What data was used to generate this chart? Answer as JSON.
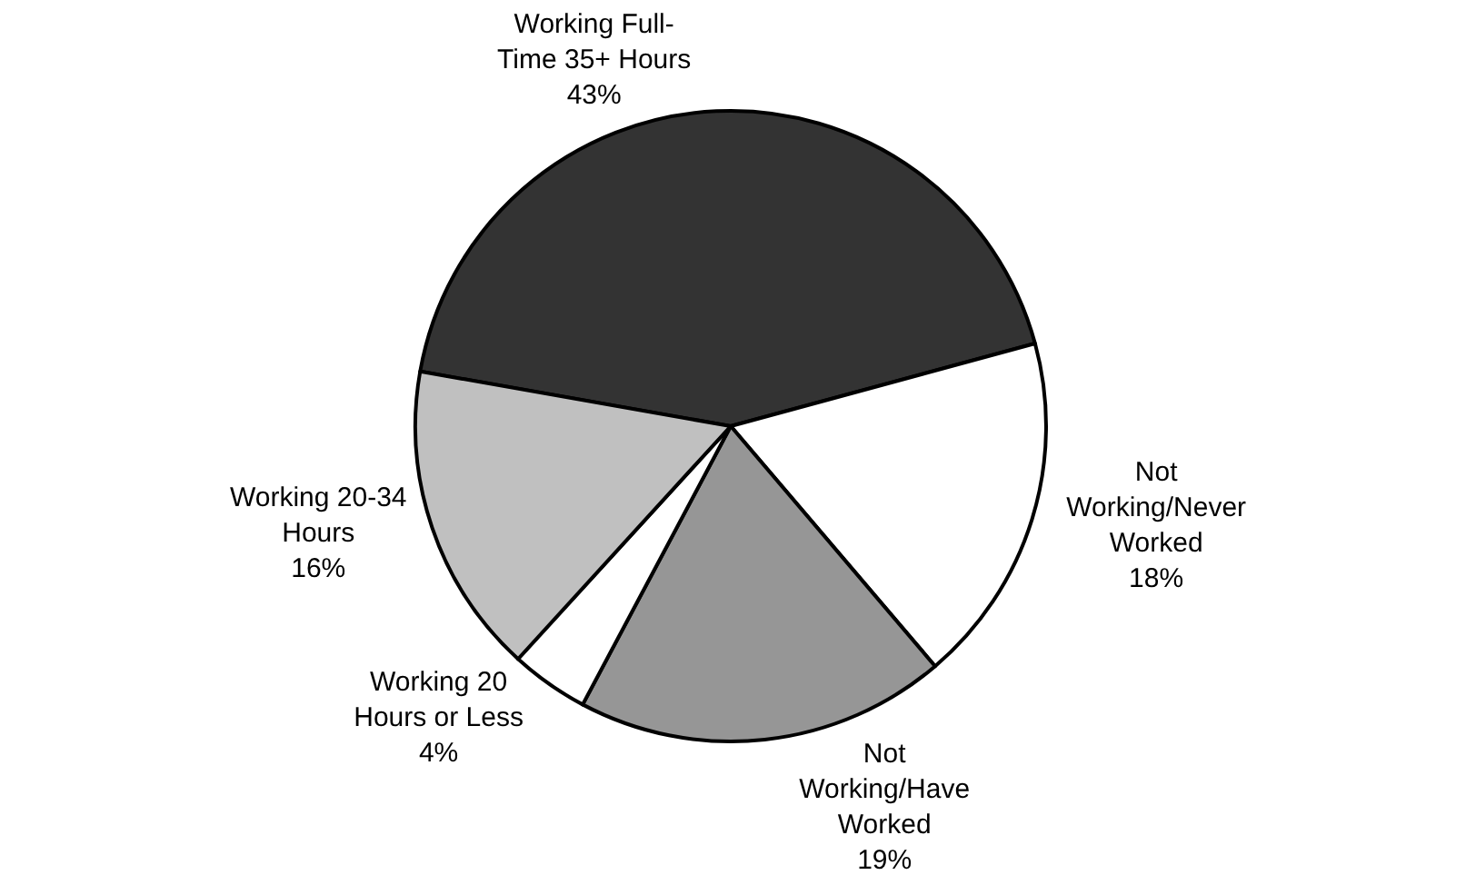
{
  "chart_data": {
    "type": "pie",
    "categories": [
      "Working Full-Time 35+ Hours",
      "Not Working/Never Worked",
      "Not Working/Have Worked",
      "Working 20 Hours or Less",
      "Working 20-34 Hours"
    ],
    "values": [
      43,
      18,
      19,
      4,
      16
    ],
    "value_labels": [
      "43%",
      "18%",
      "19%",
      "4%",
      "16%"
    ],
    "colors": [
      "#333333",
      "#ffffff",
      "#969696",
      "#ffffff",
      "#c0c0c0"
    ],
    "legend": false
  }
}
